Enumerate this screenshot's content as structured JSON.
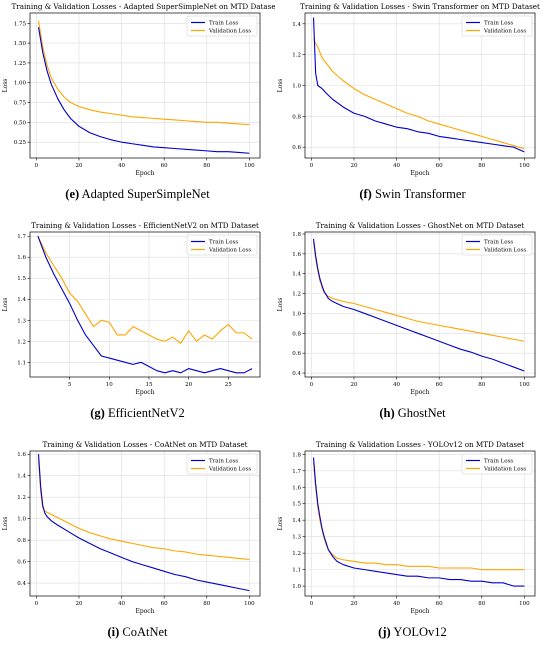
{
  "colors": {
    "train": "#0000cc",
    "validation": "#ffa500",
    "grid": "#dcdcdc",
    "axis": "#000000"
  },
  "panels": [
    {
      "caption_letter": "(e)",
      "caption_text": "Adapted SuperSimpleNet"
    },
    {
      "caption_letter": "(f)",
      "caption_text": "Swin Transformer"
    },
    {
      "caption_letter": "(g)",
      "caption_text": "EfficientNetV2"
    },
    {
      "caption_letter": "(h)",
      "caption_text": "GhostNet"
    },
    {
      "caption_letter": "(i)",
      "caption_text": "CoAtNet"
    },
    {
      "caption_letter": "(j)",
      "caption_text": "YOLOv12"
    }
  ],
  "chart_data": [
    {
      "type": "line",
      "title": "Training & Validation Losses - Adapted SuperSimpleNet on MTD Dataset",
      "xlabel": "Epoch",
      "ylabel": "Loss",
      "xlim": [
        -3,
        105
      ],
      "ylim": [
        0.05,
        1.88
      ],
      "xticks": [
        0,
        20,
        40,
        60,
        80,
        100
      ],
      "yticks": [
        0.25,
        0.5,
        0.75,
        1.0,
        1.25,
        1.5,
        1.75
      ],
      "ytick_labels": [
        "0.25",
        "0.50",
        "0.75",
        "1.00",
        "1.25",
        "1.50",
        "1.75"
      ],
      "legend": "top-right",
      "series": [
        {
          "name": "Train Loss",
          "x": [
            1,
            3,
            5,
            7,
            10,
            13,
            16,
            20,
            25,
            30,
            35,
            40,
            45,
            50,
            55,
            60,
            65,
            70,
            75,
            80,
            85,
            90,
            95,
            100
          ],
          "y": [
            1.7,
            1.38,
            1.15,
            0.98,
            0.8,
            0.66,
            0.55,
            0.45,
            0.37,
            0.32,
            0.28,
            0.25,
            0.23,
            0.21,
            0.19,
            0.18,
            0.17,
            0.16,
            0.15,
            0.14,
            0.13,
            0.13,
            0.12,
            0.11
          ]
        },
        {
          "name": "Validation Loss",
          "x": [
            1,
            3,
            5,
            7,
            10,
            13,
            16,
            20,
            25,
            30,
            35,
            40,
            45,
            50,
            55,
            60,
            65,
            70,
            75,
            80,
            85,
            90,
            95,
            100
          ],
          "y": [
            1.78,
            1.45,
            1.22,
            1.06,
            0.92,
            0.82,
            0.75,
            0.7,
            0.66,
            0.63,
            0.61,
            0.59,
            0.57,
            0.56,
            0.55,
            0.54,
            0.53,
            0.52,
            0.51,
            0.5,
            0.5,
            0.49,
            0.48,
            0.47
          ]
        }
      ]
    },
    {
      "type": "line",
      "title": "Training & Validation Losses - Swin Transformer on MTD Dataset",
      "xlabel": "Epoch",
      "ylabel": "Loss",
      "xlim": [
        -3,
        105
      ],
      "ylim": [
        0.53,
        1.47
      ],
      "xticks": [
        0,
        20,
        40,
        60,
        80,
        100
      ],
      "yticks": [
        0.6,
        0.8,
        1.0,
        1.2,
        1.4
      ],
      "ytick_labels": [
        "0.6",
        "0.8",
        "1.0",
        "1.2",
        "1.4"
      ],
      "legend": "top-right",
      "series": [
        {
          "name": "Train Loss",
          "x": [
            1,
            2,
            3,
            5,
            7,
            10,
            15,
            20,
            25,
            30,
            35,
            40,
            45,
            50,
            55,
            60,
            65,
            70,
            75,
            80,
            85,
            90,
            95,
            100
          ],
          "y": [
            1.44,
            1.08,
            1.0,
            0.98,
            0.95,
            0.91,
            0.86,
            0.82,
            0.8,
            0.77,
            0.75,
            0.73,
            0.72,
            0.7,
            0.69,
            0.67,
            0.66,
            0.65,
            0.64,
            0.63,
            0.62,
            0.61,
            0.6,
            0.57
          ]
        },
        {
          "name": "Validation Loss",
          "x": [
            1,
            3,
            5,
            10,
            15,
            20,
            25,
            30,
            35,
            40,
            45,
            50,
            55,
            60,
            65,
            70,
            75,
            80,
            85,
            90,
            95,
            100
          ],
          "y": [
            1.3,
            1.25,
            1.18,
            1.09,
            1.03,
            0.98,
            0.94,
            0.91,
            0.88,
            0.85,
            0.82,
            0.8,
            0.77,
            0.75,
            0.73,
            0.71,
            0.69,
            0.67,
            0.65,
            0.63,
            0.61,
            0.59
          ]
        }
      ]
    },
    {
      "type": "line",
      "title": "Training & Validation Losses - EfficientNetV2 on MTD Dataset",
      "xlabel": "Epoch",
      "ylabel": "Loss",
      "xlim": [
        0,
        29
      ],
      "ylim": [
        1.03,
        1.72
      ],
      "xticks": [
        5,
        10,
        15,
        20,
        25
      ],
      "yticks": [
        1.1,
        1.2,
        1.3,
        1.4,
        1.5,
        1.6,
        1.7
      ],
      "ytick_labels": [
        "1.1",
        "1.2",
        "1.3",
        "1.4",
        "1.5",
        "1.6",
        "1.7"
      ],
      "legend": "top-right",
      "series": [
        {
          "name": "Train Loss",
          "x": [
            1,
            2,
            3,
            4,
            5,
            6,
            7,
            8,
            9,
            10,
            11,
            12,
            13,
            14,
            15,
            16,
            17,
            18,
            19,
            20,
            21,
            22,
            23,
            24,
            25,
            26,
            27,
            28
          ],
          "y": [
            1.7,
            1.6,
            1.52,
            1.45,
            1.38,
            1.3,
            1.23,
            1.18,
            1.13,
            1.12,
            1.11,
            1.1,
            1.09,
            1.1,
            1.08,
            1.06,
            1.05,
            1.06,
            1.05,
            1.07,
            1.06,
            1.05,
            1.06,
            1.07,
            1.06,
            1.05,
            1.05,
            1.07
          ]
        },
        {
          "name": "Validation Loss",
          "x": [
            1,
            2,
            3,
            4,
            5,
            6,
            7,
            8,
            9,
            10,
            11,
            12,
            13,
            14,
            15,
            16,
            17,
            18,
            19,
            20,
            21,
            22,
            23,
            24,
            25,
            26,
            27,
            28
          ],
          "y": [
            1.7,
            1.62,
            1.56,
            1.5,
            1.43,
            1.39,
            1.33,
            1.27,
            1.3,
            1.29,
            1.23,
            1.23,
            1.27,
            1.25,
            1.23,
            1.21,
            1.2,
            1.22,
            1.19,
            1.25,
            1.2,
            1.23,
            1.21,
            1.25,
            1.28,
            1.24,
            1.24,
            1.21
          ]
        }
      ]
    },
    {
      "type": "line",
      "title": "Training & Validation Losses - GhostNet on MTD Dataset",
      "xlabel": "Epoch",
      "ylabel": "Loss",
      "xlim": [
        -3,
        105
      ],
      "ylim": [
        0.36,
        1.82
      ],
      "xticks": [
        0,
        20,
        40,
        60,
        80,
        100
      ],
      "yticks": [
        0.4,
        0.6,
        0.8,
        1.0,
        1.2,
        1.4,
        1.6,
        1.8
      ],
      "ytick_labels": [
        "0.4",
        "0.6",
        "0.8",
        "1.0",
        "1.2",
        "1.4",
        "1.6",
        "1.8"
      ],
      "legend": "top-right",
      "series": [
        {
          "name": "Train Loss",
          "x": [
            1,
            2,
            3,
            4,
            5,
            6,
            8,
            10,
            15,
            20,
            25,
            30,
            35,
            40,
            45,
            50,
            55,
            60,
            65,
            70,
            75,
            80,
            85,
            90,
            95,
            100
          ],
          "y": [
            1.75,
            1.58,
            1.45,
            1.35,
            1.28,
            1.22,
            1.15,
            1.12,
            1.07,
            1.04,
            1.0,
            0.96,
            0.92,
            0.88,
            0.84,
            0.8,
            0.76,
            0.72,
            0.68,
            0.64,
            0.61,
            0.57,
            0.54,
            0.5,
            0.46,
            0.42
          ]
        },
        {
          "name": "Validation Loss",
          "x": [
            1,
            2,
            3,
            4,
            5,
            6,
            8,
            10,
            15,
            20,
            25,
            30,
            35,
            40,
            45,
            50,
            55,
            60,
            65,
            70,
            75,
            80,
            85,
            90,
            95,
            100
          ],
          "y": [
            1.72,
            1.55,
            1.43,
            1.33,
            1.26,
            1.21,
            1.17,
            1.15,
            1.12,
            1.1,
            1.07,
            1.04,
            1.01,
            0.98,
            0.95,
            0.92,
            0.9,
            0.88,
            0.86,
            0.84,
            0.82,
            0.8,
            0.78,
            0.76,
            0.74,
            0.72
          ]
        }
      ]
    },
    {
      "type": "line",
      "title": "Training & Validation Losses - CoAtNet on MTD Dataset",
      "xlabel": "Epoch",
      "ylabel": "Loss",
      "xlim": [
        -3,
        105
      ],
      "ylim": [
        0.28,
        1.63
      ],
      "xticks": [
        0,
        20,
        40,
        60,
        80,
        100
      ],
      "yticks": [
        0.4,
        0.6,
        0.8,
        1.0,
        1.2,
        1.4,
        1.6
      ],
      "ytick_labels": [
        "0.4",
        "0.6",
        "0.8",
        "1.0",
        "1.2",
        "1.4",
        "1.6"
      ],
      "legend": "top-right",
      "series": [
        {
          "name": "Train Loss",
          "x": [
            1,
            2,
            3,
            4,
            5,
            7,
            10,
            15,
            20,
            25,
            30,
            35,
            40,
            45,
            50,
            55,
            60,
            65,
            70,
            75,
            80,
            85,
            90,
            95,
            100
          ],
          "y": [
            1.6,
            1.3,
            1.12,
            1.05,
            1.02,
            0.98,
            0.94,
            0.88,
            0.82,
            0.77,
            0.72,
            0.68,
            0.64,
            0.6,
            0.57,
            0.54,
            0.51,
            0.48,
            0.46,
            0.43,
            0.41,
            0.39,
            0.37,
            0.35,
            0.33
          ]
        },
        {
          "name": "Validation Loss",
          "x": [
            1,
            2,
            3,
            4,
            5,
            7,
            10,
            15,
            20,
            25,
            30,
            35,
            40,
            45,
            50,
            55,
            60,
            65,
            70,
            75,
            80,
            85,
            90,
            95,
            100
          ],
          "y": [
            1.55,
            1.25,
            1.1,
            1.07,
            1.06,
            1.04,
            1.01,
            0.96,
            0.91,
            0.87,
            0.84,
            0.81,
            0.79,
            0.77,
            0.75,
            0.73,
            0.72,
            0.7,
            0.69,
            0.67,
            0.66,
            0.65,
            0.64,
            0.63,
            0.62
          ]
        }
      ]
    },
    {
      "type": "line",
      "title": "Training & Validation Losses - YOLOv12 on MTD Dataset",
      "xlabel": "Epoch",
      "ylabel": "Loss",
      "xlim": [
        -3,
        105
      ],
      "ylim": [
        0.94,
        1.82
      ],
      "xticks": [
        0,
        20,
        40,
        60,
        80,
        100
      ],
      "yticks": [
        1.0,
        1.1,
        1.2,
        1.3,
        1.4,
        1.5,
        1.6,
        1.7,
        1.8
      ],
      "ytick_labels": [
        "1.0",
        "1.1",
        "1.2",
        "1.3",
        "1.4",
        "1.5",
        "1.6",
        "1.7",
        "1.8"
      ],
      "legend": "top-right",
      "series": [
        {
          "name": "Train Loss",
          "x": [
            1,
            2,
            3,
            4,
            5,
            6,
            7,
            8,
            10,
            12,
            15,
            20,
            25,
            30,
            35,
            40,
            45,
            50,
            55,
            60,
            65,
            70,
            75,
            80,
            85,
            90,
            95,
            100
          ],
          "y": [
            1.78,
            1.62,
            1.5,
            1.42,
            1.35,
            1.3,
            1.26,
            1.22,
            1.18,
            1.15,
            1.13,
            1.11,
            1.1,
            1.09,
            1.08,
            1.07,
            1.06,
            1.06,
            1.05,
            1.05,
            1.04,
            1.04,
            1.03,
            1.03,
            1.02,
            1.02,
            1.0,
            1.0
          ]
        },
        {
          "name": "Validation Loss",
          "x": [
            1,
            2,
            3,
            4,
            5,
            6,
            7,
            8,
            10,
            12,
            15,
            20,
            25,
            30,
            35,
            40,
            45,
            50,
            55,
            60,
            65,
            70,
            75,
            80,
            85,
            90,
            95,
            100
          ],
          "y": [
            1.75,
            1.6,
            1.48,
            1.4,
            1.34,
            1.29,
            1.25,
            1.22,
            1.19,
            1.17,
            1.16,
            1.15,
            1.14,
            1.14,
            1.13,
            1.13,
            1.12,
            1.12,
            1.12,
            1.11,
            1.11,
            1.11,
            1.11,
            1.1,
            1.1,
            1.1,
            1.1,
            1.1
          ]
        }
      ]
    }
  ]
}
